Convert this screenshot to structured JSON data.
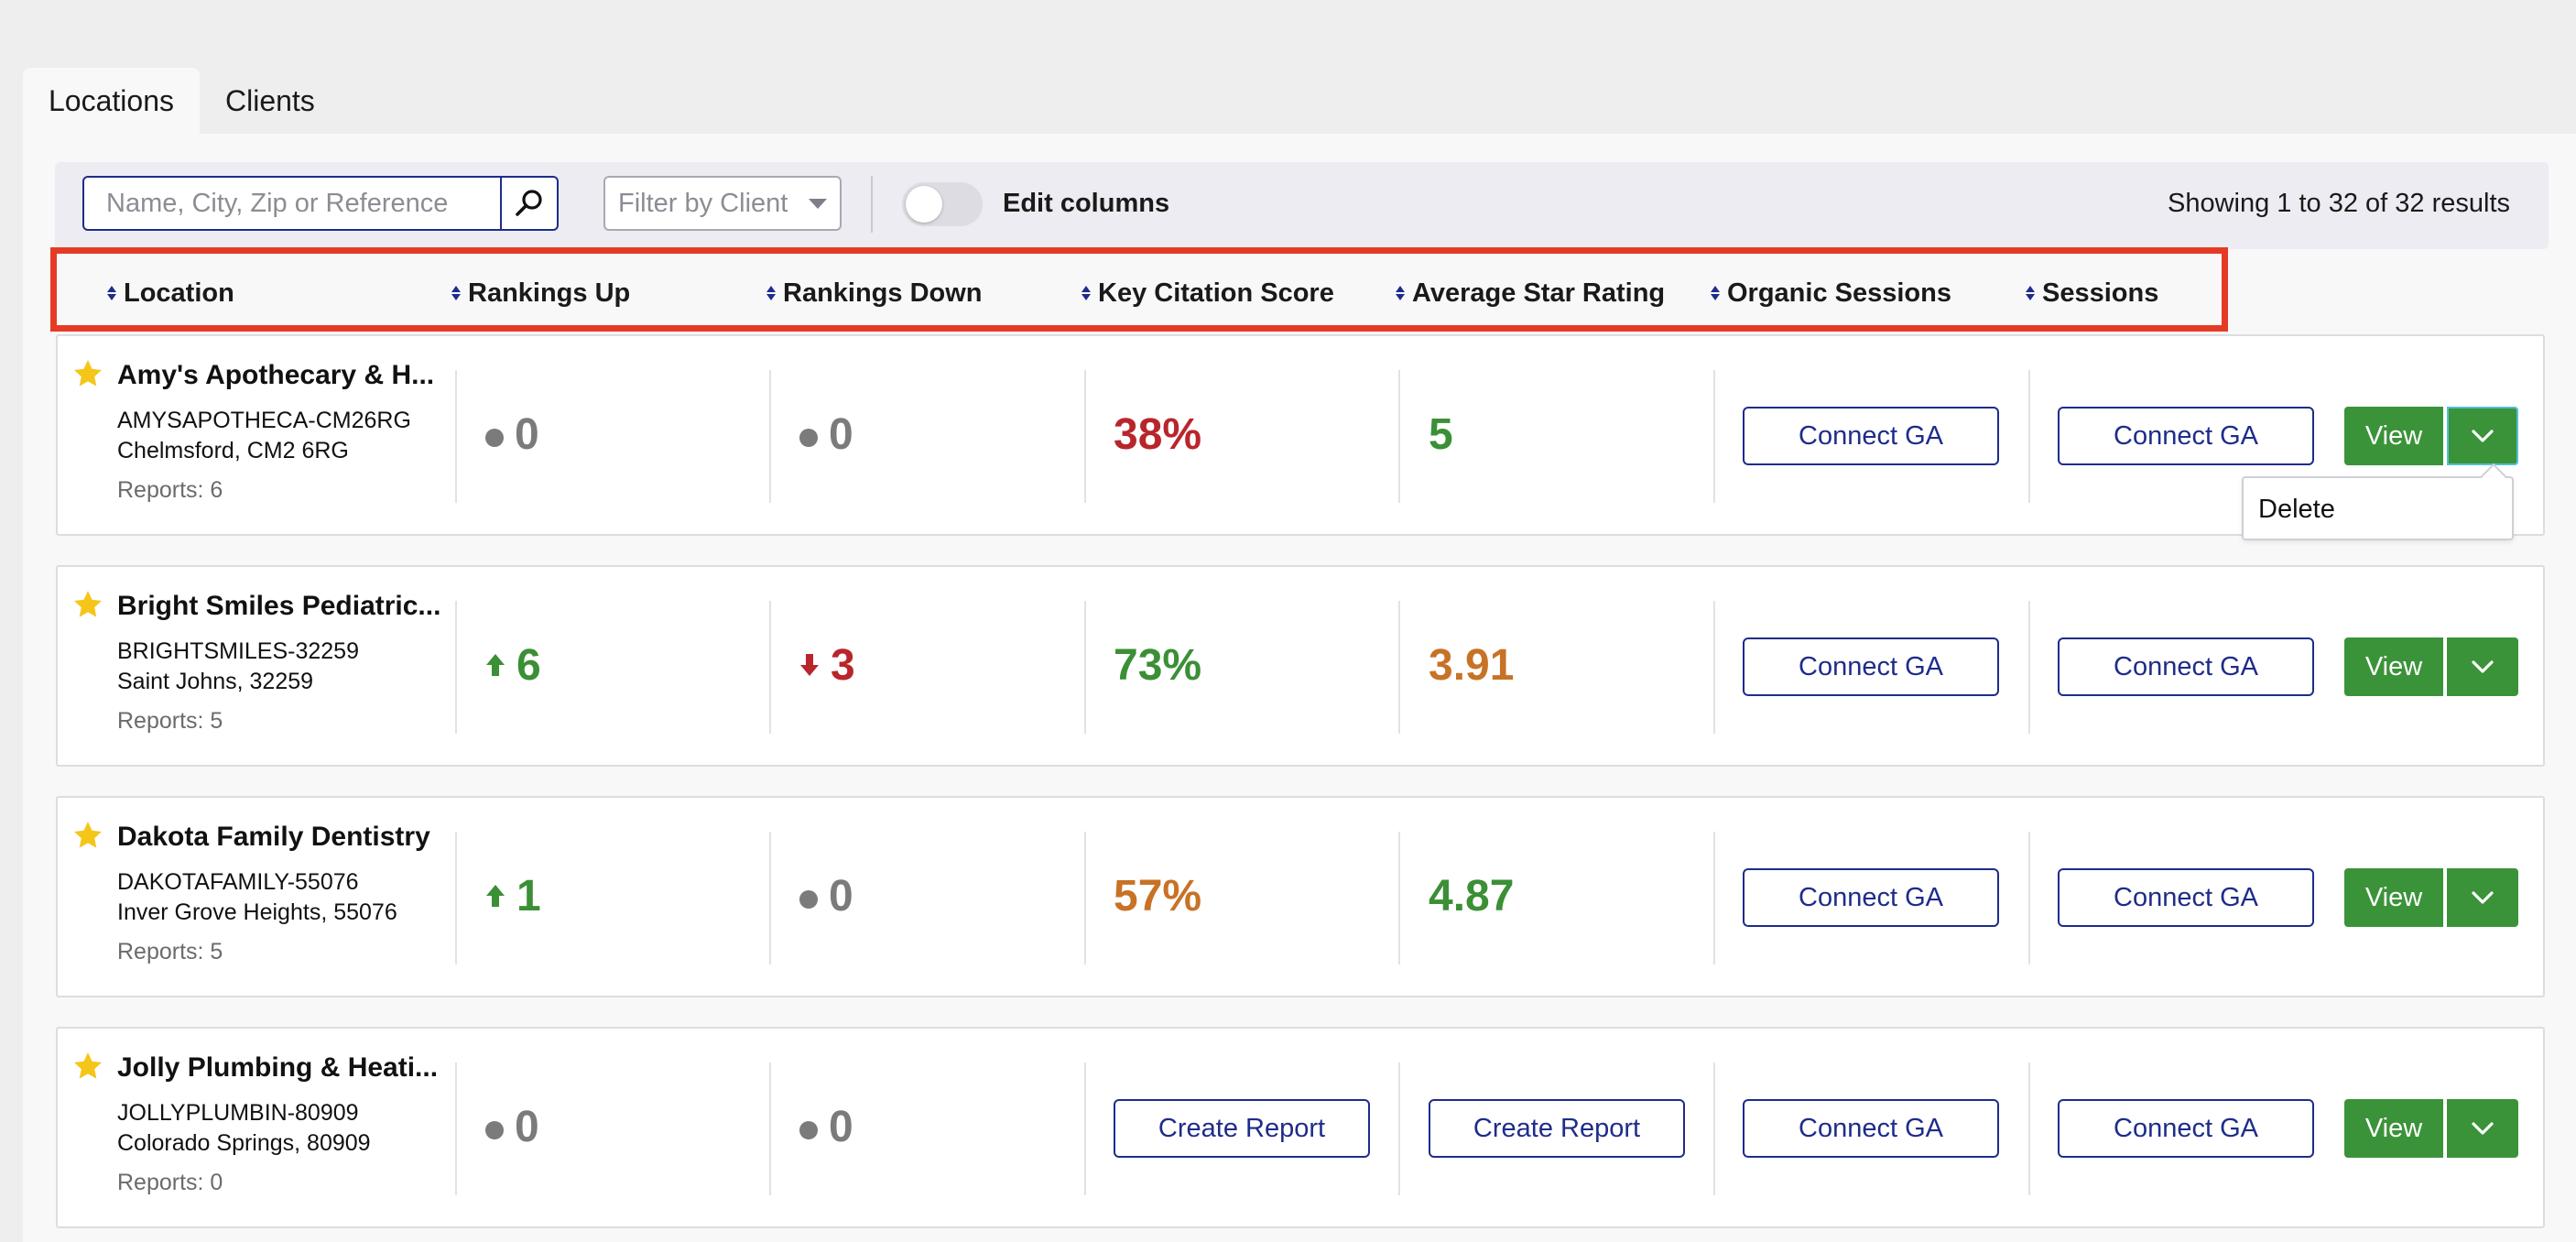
{
  "tabs": [
    {
      "label": "Locations",
      "active": true
    },
    {
      "label": "Clients",
      "active": false
    }
  ],
  "toolbar": {
    "search_placeholder": "Name, City, Zip or Reference",
    "filter_placeholder": "Filter by Client",
    "toggle_label": "Edit columns",
    "toggle_on": false,
    "results": "Showing 1 to 32 of 32 results"
  },
  "columns": [
    "Location",
    "Rankings Up",
    "Rankings Down",
    "Key Citation Score",
    "Average Star Rating",
    "Organic Sessions",
    "Sessions"
  ],
  "buttons": {
    "connect": "Connect GA",
    "create_report": "Create Report",
    "view": "View"
  },
  "dropdown": {
    "item": "Delete"
  },
  "rows": [
    {
      "name": "Amy's Apothecary & H...",
      "ref": "AMYSAPOTHECA-CM26RG",
      "city": "Chelmsford, CM2 6RG",
      "reports": "Reports: 6",
      "up": "0",
      "down": "0",
      "citation": "38%",
      "stars": "5"
    },
    {
      "name": "Bright Smiles Pediatric...",
      "ref": "BRIGHTSMILES-32259",
      "city": "Saint Johns, 32259",
      "reports": "Reports: 5",
      "up": "6",
      "down": "3",
      "citation": "73%",
      "stars": "3.91"
    },
    {
      "name": "Dakota Family Dentistry",
      "ref": "DAKOTAFAMILY-55076",
      "city": "Inver Grove Heights, 55076",
      "reports": "Reports: 5",
      "up": "1",
      "down": "0",
      "citation": "57%",
      "stars": "4.87"
    },
    {
      "name": "Jolly Plumbing & Heati...",
      "ref": "JOLLYPLUMBIN-80909",
      "city": "Colorado Springs, 80909",
      "reports": "Reports: 0",
      "up": "0",
      "down": "0"
    }
  ],
  "colors": {
    "primary": "#1e2c8a",
    "success": "#3b9339",
    "positive": "#3b8f35",
    "negative": "#b8262b",
    "warning": "#c87226",
    "neutral": "#7b7b7b",
    "highlight": "#e53b25",
    "star": "#f5c518"
  }
}
